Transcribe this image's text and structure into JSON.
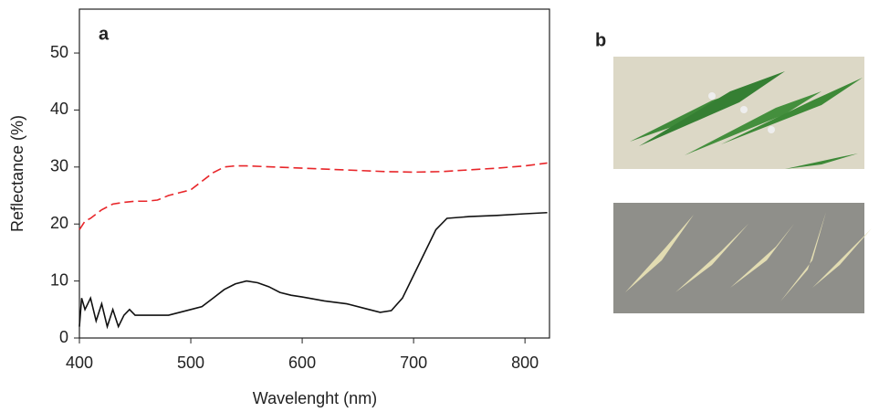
{
  "chart_data": {
    "type": "line",
    "panel_label": "a",
    "xlabel": "Wavelenght (nm)",
    "ylabel": "Reflectance (%)",
    "xlim": [
      400,
      822
    ],
    "ylim": [
      0,
      57.7
    ],
    "xticks": [
      400,
      500,
      600,
      700,
      800
    ],
    "yticks": [
      0,
      10,
      20,
      30,
      40,
      50
    ],
    "series": [
      {
        "color": "#e8262a",
        "dashed": true,
        "x": [
          400,
          405,
          410,
          420,
          430,
          440,
          450,
          460,
          470,
          480,
          490,
          500,
          510,
          520,
          530,
          540,
          550,
          575,
          600,
          625,
          650,
          675,
          700,
          725,
          750,
          775,
          800,
          820
        ],
        "values": [
          19,
          20.5,
          21,
          22.5,
          23.5,
          23.8,
          24,
          24,
          24.2,
          25,
          25.5,
          26,
          27.5,
          29,
          30,
          30.2,
          30.2,
          30,
          29.8,
          29.6,
          29.4,
          29.2,
          29.1,
          29.2,
          29.5,
          29.8,
          30.2,
          30.7
        ]
      },
      {
        "color": "#111111",
        "dashed": false,
        "x": [
          400,
          402,
          405,
          410,
          415,
          420,
          425,
          430,
          435,
          440,
          445,
          450,
          460,
          470,
          480,
          490,
          500,
          510,
          520,
          530,
          540,
          550,
          560,
          570,
          580,
          590,
          600,
          620,
          640,
          660,
          670,
          680,
          690,
          700,
          710,
          720,
          730,
          750,
          775,
          800,
          820
        ],
        "values": [
          2,
          7,
          5,
          7,
          3,
          6,
          2,
          5,
          2,
          4,
          5,
          4,
          4,
          4,
          4,
          4.5,
          5,
          5.5,
          7,
          8.5,
          9.5,
          10,
          9.7,
          9,
          8,
          7.5,
          7.2,
          6.5,
          6,
          5,
          4.5,
          4.8,
          7,
          11,
          15,
          19,
          21,
          21.3,
          21.5,
          21.8,
          22
        ]
      }
    ]
  },
  "photo_panel": {
    "label": "b"
  }
}
